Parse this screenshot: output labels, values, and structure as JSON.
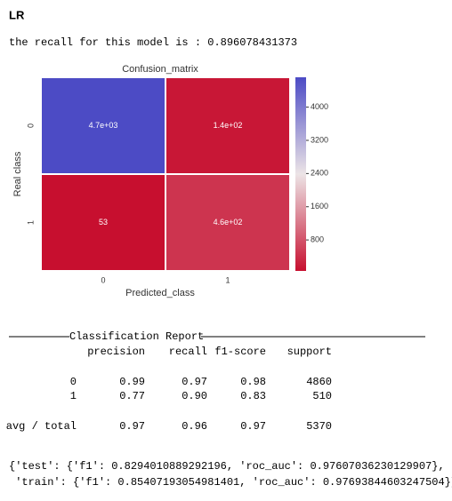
{
  "header": {
    "title": "LR"
  },
  "recall_text": "the recall for this model is : 0.896078431373",
  "chart_data": {
    "type": "heatmap",
    "title": "Confusion_matrix",
    "x_label": "Predicted_class",
    "y_label": "Real class",
    "x_categories": [
      "0",
      "1"
    ],
    "y_categories": [
      "0",
      "1"
    ],
    "values": [
      [
        4720,
        140
      ],
      [
        53,
        457
      ]
    ],
    "value_labels": [
      [
        "4.7e+03",
        "1.4e+02"
      ],
      [
        "53",
        "4.6e+02"
      ]
    ],
    "colorbar_lim": [
      53,
      4720
    ],
    "colorbar_ticks": [
      800,
      1600,
      2400,
      3200,
      4000
    ],
    "colormap": [
      "#c70f2f",
      "#ece4e6",
      "#4c4bc5"
    ]
  },
  "report": {
    "title": "Classification Report",
    "columns": [
      "precision",
      "recall",
      "f1-score",
      "support"
    ],
    "rows": [
      [
        "0",
        "0.99",
        "0.97",
        "0.98",
        "4860"
      ],
      [
        "1",
        "0.77",
        "0.90",
        "0.83",
        "510"
      ],
      [
        "avg / total",
        "0.97",
        "0.96",
        "0.97",
        "5370"
      ]
    ]
  },
  "scores_text": [
    "{'test': {'f1': 0.8294010889292196, 'roc_auc': 0.97607036230129907},",
    " 'train': {'f1': 0.85407193054981401, 'roc_auc': 0.97693844603247504}}"
  ]
}
